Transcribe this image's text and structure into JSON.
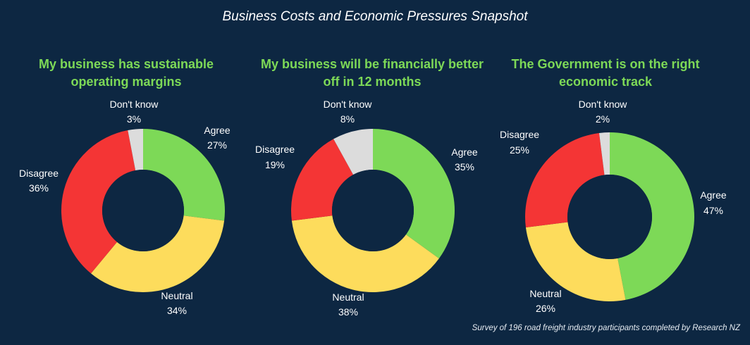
{
  "subtitle": "Business Costs and Economic Pressures Snapshot",
  "footer": "Survey of 196 road freight industry participants completed by Research NZ",
  "colors": {
    "Agree": "#7dd957",
    "Neutral": "#fddc5c",
    "Disagree": "#f43535",
    "Don't know": "#dcdcdc"
  },
  "chart_data": [
    {
      "type": "pie",
      "title": "My business has sustainable operating margins",
      "categories": [
        "Agree",
        "Neutral",
        "Disagree",
        "Don't know"
      ],
      "values": [
        27,
        34,
        36,
        3
      ],
      "labels": [
        "27%",
        "34%",
        "36%",
        "3%"
      ]
    },
    {
      "type": "pie",
      "title": "My business will be financially better off in 12 months",
      "categories": [
        "Agree",
        "Neutral",
        "Disagree",
        "Don't know"
      ],
      "values": [
        35,
        38,
        19,
        8
      ],
      "labels": [
        "35%",
        "38%",
        "19%",
        "8%"
      ]
    },
    {
      "type": "pie",
      "title": "The Government is on the right economic track",
      "categories": [
        "Agree",
        "Neutral",
        "Disagree",
        "Don't know"
      ],
      "values": [
        47,
        26,
        25,
        2
      ],
      "labels": [
        "47%",
        "26%",
        "25%",
        "2%"
      ]
    }
  ]
}
